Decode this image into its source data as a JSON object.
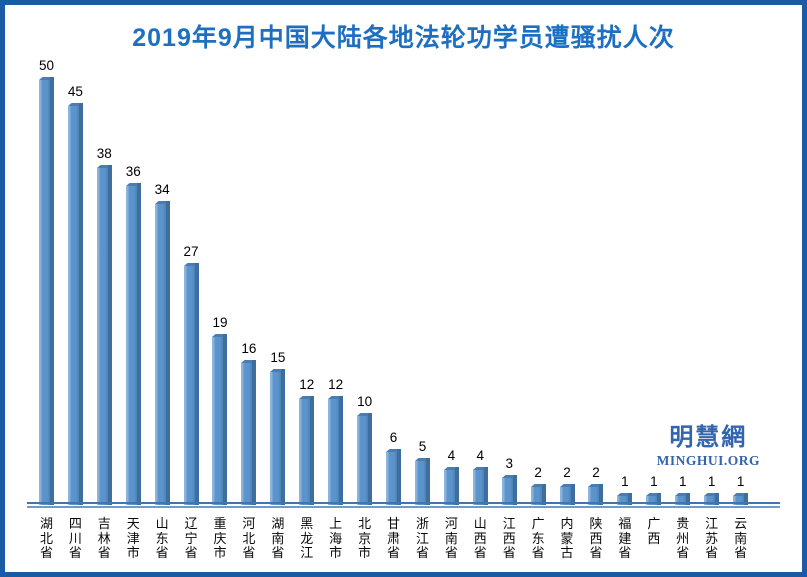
{
  "chart_data": {
    "type": "bar",
    "title": "2019年9月中国大陆各地法轮功学员遭骚扰人次",
    "categories": [
      "湖北省",
      "四川省",
      "吉林省",
      "天津市",
      "山东省",
      "辽宁省",
      "重庆市",
      "河北省",
      "湖南省",
      "黑龙江",
      "上海市",
      "北京市",
      "甘肃省",
      "浙江省",
      "河南省",
      "山西省",
      "江西省",
      "广东省",
      "内蒙古",
      "陕西省",
      "福建省",
      "广西",
      "贵州省",
      "江苏省",
      "云南省"
    ],
    "values": [
      50,
      45,
      38,
      36,
      34,
      27,
      19,
      16,
      15,
      12,
      12,
      10,
      6,
      5,
      4,
      4,
      3,
      2,
      2,
      2,
      1,
      1,
      1,
      1,
      1
    ],
    "xlabel": "",
    "ylabel": "",
    "ylim": [
      0,
      50
    ],
    "grid": false,
    "legend": false,
    "bar_value_labels_shown": true,
    "x_label_orientation": "vertical",
    "style": "3d-bar"
  },
  "watermark": {
    "cjk": "明慧網",
    "latin": "MINGHUI.ORG"
  },
  "colors": {
    "border": "#1A5BA4",
    "title": "#1D6FC2",
    "bar_face": "#5B93CB",
    "bar_face_highlight": "#8CB6DF",
    "bar_side": "#3D6E9E",
    "bar_cap": "#4B7DB0",
    "axis_line": "#4474AC",
    "axis_line_secondary": "#6E9CCA",
    "value_label": "#000000",
    "watermark": "#3364AE"
  }
}
